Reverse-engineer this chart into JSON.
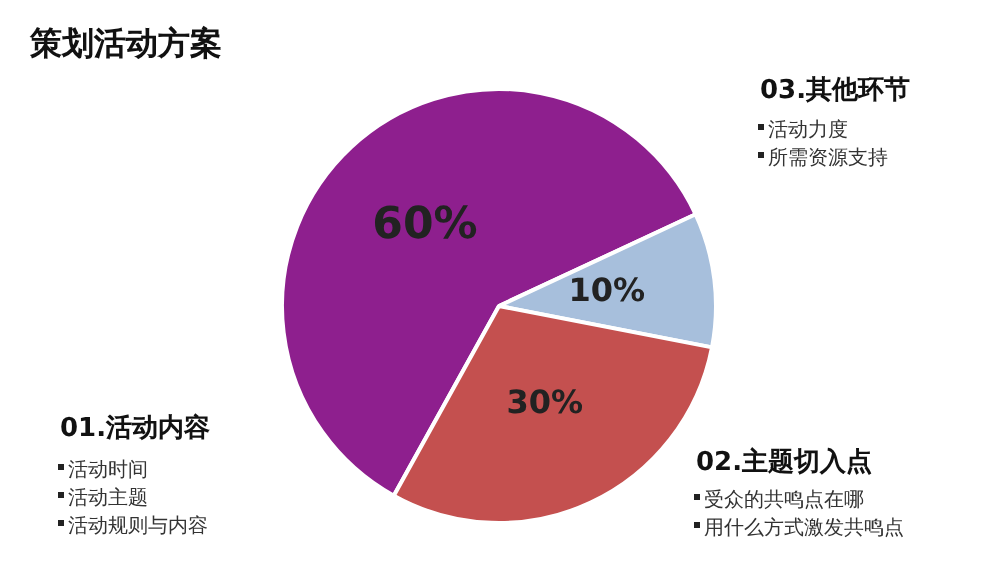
{
  "chart_data": {
    "type": "pie",
    "title": "策划活动方案",
    "categories": [
      null,
      null,
      null
    ],
    "values": [
      60,
      10,
      30
    ],
    "value_labels": [
      "60%",
      "10%",
      "30%"
    ],
    "colors": [
      "#8e1f8e",
      "#a7bfdc",
      "#c4504f"
    ],
    "legend": false,
    "annotations": [
      "01.活动内容",
      "活动时间",
      "活动主题",
      "活动规则与内容",
      "02.主题切入点",
      "受众的共鸣点在哪",
      "用什么方式激发共鸣点",
      "03.其他环节",
      "活动力度",
      "所需资源支持"
    ]
  }
}
